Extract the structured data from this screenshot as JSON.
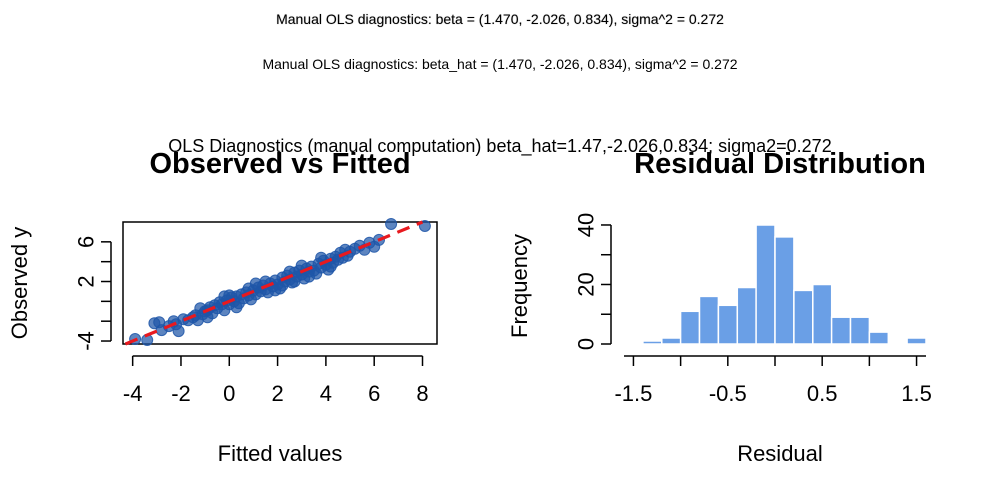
{
  "figure": {
    "title_line1": "Manual OLS diagnostics: beta = (1.470, -2.026, 0.834), sigma^2 = 0.272",
    "title_line2": "Manual OLS diagnostics: beta_hat = (1.470, -2.026, 0.834), sigma^2 = 0.272",
    "title_line3": "OLS Diagnostics (manual computation) beta_hat=1.47,-2.026,0.834; sigma2=0.272"
  },
  "colors": {
    "points": "#1f56a8",
    "ref_line": "#e8191f",
    "bars": "#6a9fe6"
  },
  "chart_data": [
    {
      "type": "scatter",
      "title": "Observed vs Fitted",
      "xlabel": "Fitted values",
      "ylabel": "Observed y",
      "xlim": [
        -4.4,
        8.6
      ],
      "ylim": [
        -4.3,
        8.0
      ],
      "xticks": [
        -4,
        -2,
        0,
        2,
        4,
        6,
        8
      ],
      "xtick_labels": [
        "-4",
        "-2",
        "0",
        "2",
        "4",
        "6",
        "8"
      ],
      "yticks": [
        -4,
        2,
        6
      ],
      "ytick_labels": [
        "-4",
        "2",
        "6"
      ],
      "reference_line": {
        "slope": 1,
        "intercept": 0,
        "style": "dashed"
      },
      "points": [
        [
          -3.9,
          -3.8
        ],
        [
          -3.4,
          -3.9
        ],
        [
          -3.1,
          -2.2
        ],
        [
          -2.9,
          -2.1
        ],
        [
          -2.8,
          -2.9
        ],
        [
          -2.5,
          -2.5
        ],
        [
          -2.3,
          -2.0
        ],
        [
          -2.2,
          -2.3
        ],
        [
          -2.1,
          -3.0
        ],
        [
          -1.9,
          -1.8
        ],
        [
          -1.7,
          -1.9
        ],
        [
          -1.5,
          -1.6
        ],
        [
          -1.4,
          -1.4
        ],
        [
          -1.3,
          -1.9
        ],
        [
          -1.1,
          -1.3
        ],
        [
          -1.0,
          -1.0
        ],
        [
          -0.9,
          -0.9
        ],
        [
          -0.8,
          -0.6
        ],
        [
          -0.7,
          -1.2
        ],
        [
          -0.6,
          -0.4
        ],
        [
          -0.5,
          -0.7
        ],
        [
          -0.4,
          -0.1
        ],
        [
          -0.3,
          -0.3
        ],
        [
          -0.2,
          -0.9
        ],
        [
          -0.1,
          0.1
        ],
        [
          0.0,
          -0.3
        ],
        [
          0.1,
          0.4
        ],
        [
          0.2,
          0.0
        ],
        [
          0.3,
          0.5
        ],
        [
          0.4,
          -0.2
        ],
        [
          0.5,
          0.7
        ],
        [
          0.6,
          0.3
        ],
        [
          0.7,
          0.9
        ],
        [
          0.8,
          0.6
        ],
        [
          0.9,
          0.2
        ],
        [
          1.0,
          1.1
        ],
        [
          1.1,
          0.7
        ],
        [
          1.2,
          1.4
        ],
        [
          1.3,
          1.0
        ],
        [
          1.4,
          1.6
        ],
        [
          1.5,
          1.2
        ],
        [
          1.6,
          0.9
        ],
        [
          1.7,
          1.8
        ],
        [
          1.8,
          1.5
        ],
        [
          1.9,
          2.1
        ],
        [
          2.0,
          1.7
        ],
        [
          2.1,
          1.3
        ],
        [
          2.2,
          2.4
        ],
        [
          2.3,
          2.0
        ],
        [
          2.4,
          2.6
        ],
        [
          2.5,
          2.2
        ],
        [
          2.6,
          1.9
        ],
        [
          2.7,
          2.9
        ],
        [
          2.8,
          2.5
        ],
        [
          2.9,
          3.1
        ],
        [
          3.0,
          2.7
        ],
        [
          3.1,
          2.3
        ],
        [
          3.2,
          3.3
        ],
        [
          3.3,
          3.0
        ],
        [
          3.4,
          3.5
        ],
        [
          3.5,
          3.1
        ],
        [
          3.6,
          2.8
        ],
        [
          3.7,
          3.8
        ],
        [
          3.8,
          3.4
        ],
        [
          3.9,
          4.1
        ],
        [
          4.0,
          3.7
        ],
        [
          4.1,
          3.2
        ],
        [
          4.2,
          4.3
        ],
        [
          4.3,
          3.9
        ],
        [
          4.4,
          4.5
        ],
        [
          4.5,
          4.2
        ],
        [
          4.6,
          4.9
        ],
        [
          4.7,
          4.4
        ],
        [
          4.8,
          5.2
        ],
        [
          4.9,
          4.6
        ],
        [
          5.0,
          5.0
        ],
        [
          5.2,
          5.3
        ],
        [
          5.4,
          5.6
        ],
        [
          5.6,
          5.2
        ],
        [
          5.8,
          5.9
        ],
        [
          6.0,
          5.5
        ],
        [
          6.2,
          6.2
        ],
        [
          6.7,
          7.8
        ],
        [
          8.1,
          7.6
        ],
        [
          -0.2,
          0.5
        ],
        [
          0.3,
          -0.6
        ],
        [
          1.5,
          2.0
        ],
        [
          2.5,
          3.0
        ],
        [
          3.3,
          2.5
        ],
        [
          0.8,
          1.3
        ],
        [
          1.9,
          1.1
        ],
        [
          2.7,
          2.0
        ],
        [
          3.8,
          4.4
        ],
        [
          4.2,
          3.5
        ],
        [
          -1.2,
          -0.7
        ],
        [
          -0.9,
          -1.6
        ],
        [
          0.0,
          0.6
        ],
        [
          1.1,
          1.8
        ],
        [
          2.2,
          1.6
        ],
        [
          3.0,
          3.6
        ]
      ]
    },
    {
      "type": "bar",
      "subtype": "histogram",
      "title": "Residual Distribution",
      "xlabel": "Residual",
      "ylabel": "Frequency",
      "xlim": [
        -1.6,
        1.6
      ],
      "ylim": [
        0,
        41
      ],
      "xticks": [
        -1.5,
        -0.5,
        0.5,
        1.5
      ],
      "xtick_labels": [
        "-1.5",
        "-0.5",
        "0.5",
        "1.5"
      ],
      "yticks": [
        0,
        20,
        40
      ],
      "ytick_labels": [
        "0",
        "20",
        "40"
      ],
      "bin_edges": [
        -1.4,
        -1.2,
        -1.0,
        -0.8,
        -0.6,
        -0.4,
        -0.2,
        0.0,
        0.2,
        0.4,
        0.6,
        0.8,
        1.0,
        1.2,
        1.4,
        1.6
      ],
      "counts": [
        1,
        2,
        11,
        16,
        13,
        19,
        40,
        36,
        18,
        20,
        9,
        9,
        4,
        0,
        2
      ]
    }
  ]
}
